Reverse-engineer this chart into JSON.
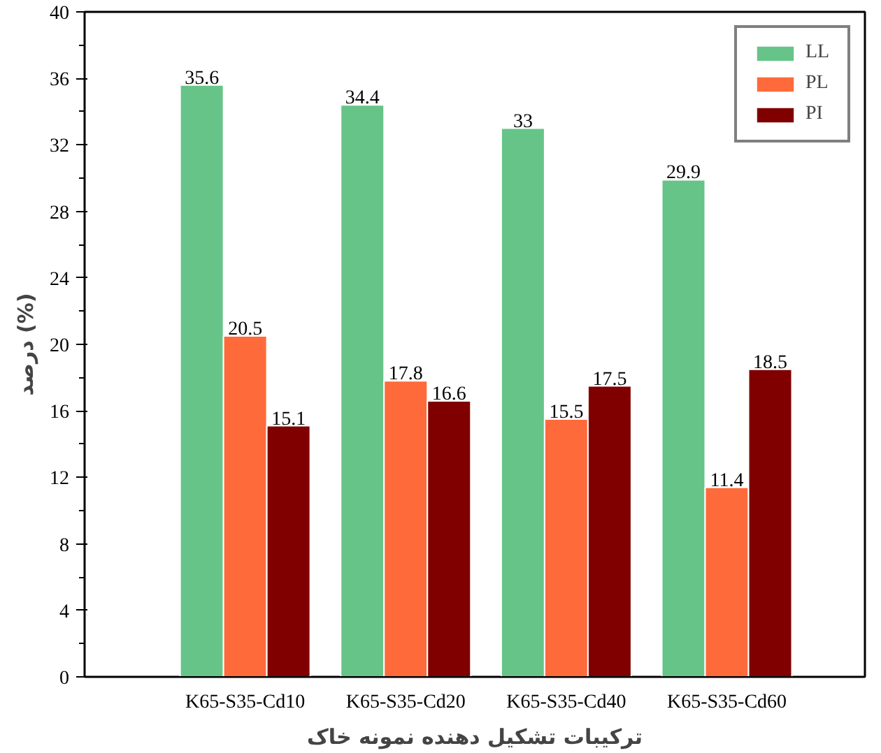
{
  "chart_data": {
    "type": "bar",
    "xlabel": "ترکیبات تشکیل دهنده نمونه خاک",
    "ylabel": "درصد (%)",
    "categories": [
      "K65-S35-Cd10",
      "K65-S35-Cd20",
      "K65-S35-Cd40",
      "K65-S35-Cd60"
    ],
    "series": [
      {
        "name": "LL",
        "color": "#66c488",
        "values": [
          35.6,
          34.4,
          33,
          29.9
        ]
      },
      {
        "name": "PL",
        "color": "#ff6a3a",
        "values": [
          20.5,
          17.8,
          15.5,
          11.4
        ]
      },
      {
        "name": "PI",
        "color": "#800000",
        "values": [
          15.1,
          16.6,
          17.5,
          18.5
        ]
      }
    ],
    "ylim": [
      0,
      40
    ],
    "yticks": [
      0,
      4,
      8,
      12,
      16,
      20,
      24,
      28,
      32,
      36,
      40
    ],
    "data_labels": true,
    "legend": "top right",
    "grid": false
  }
}
